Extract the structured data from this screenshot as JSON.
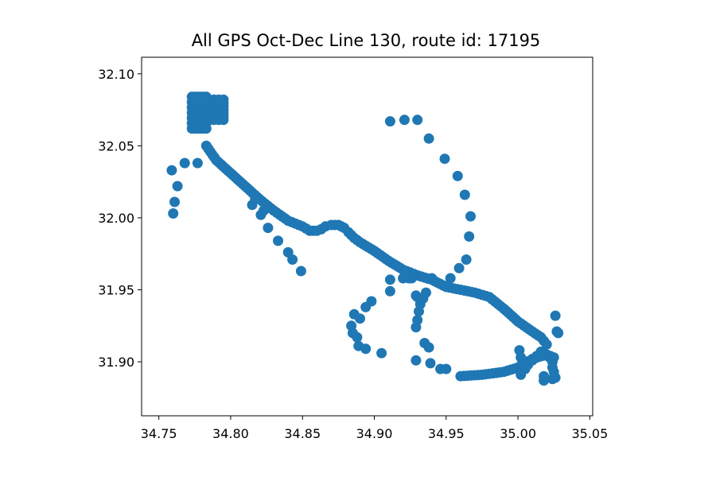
{
  "chart_data": {
    "type": "scatter",
    "title": "All GPS Oct-Dec Line 130, route id: 17195",
    "xlabel": "",
    "ylabel": "",
    "xlim": [
      34.738,
      35.052
    ],
    "ylim": [
      31.8625,
      32.1115
    ],
    "xticks": [
      "34.75",
      "34.80",
      "34.85",
      "34.90",
      "34.95",
      "35.00",
      "35.05"
    ],
    "yticks": [
      "31.90",
      "31.95",
      "32.00",
      "32.05",
      "32.10"
    ],
    "grid": false,
    "legend": "none",
    "color": "#1f77b4",
    "clusters": [
      {
        "x": [
          34.773,
          34.783
        ],
        "y": [
          32.062,
          32.084
        ]
      },
      {
        "x": [
          34.775,
          34.795
        ],
        "y": [
          32.068,
          32.082
        ]
      }
    ],
    "series": [
      {
        "x": [
          34.783,
          34.79,
          34.8,
          34.81,
          34.82,
          34.83,
          34.84,
          34.845,
          34.85,
          34.855,
          34.86,
          34.863,
          34.866,
          34.87,
          34.875,
          34.879,
          34.882,
          34.886,
          34.89,
          34.9,
          34.91,
          34.92,
          34.93,
          34.94,
          34.95,
          34.96,
          34.97,
          34.98,
          34.99,
          35.0,
          35.01,
          35.016,
          35.02
        ],
        "y": [
          32.05,
          32.04,
          32.031,
          32.022,
          32.013,
          32.005,
          31.998,
          31.996,
          31.994,
          31.991,
          31.991,
          31.992,
          31.994,
          31.995,
          31.995,
          31.993,
          31.99,
          31.986,
          31.983,
          31.977,
          31.97,
          31.964,
          31.96,
          31.957,
          31.952,
          31.95,
          31.948,
          31.945,
          31.937,
          31.928,
          31.921,
          31.917,
          31.912
        ]
      },
      {
        "x": [
          34.96,
          34.975,
          34.99,
          35.0,
          35.005,
          35.01,
          35.02,
          35.025
        ],
        "y": [
          31.89,
          31.891,
          31.893,
          31.896,
          31.899,
          31.902,
          31.905,
          31.903
        ]
      },
      {
        "x": [
          34.911,
          34.921,
          34.93,
          34.938,
          34.949,
          34.958,
          34.963,
          34.967,
          34.966,
          34.964,
          34.959,
          34.953,
          34.94,
          34.926,
          34.924,
          34.911,
          34.898,
          34.894,
          34.89,
          34.886,
          34.884,
          34.885,
          34.888,
          34.889,
          34.894,
          34.905,
          34.911,
          34.92,
          34.93,
          34.935,
          34.938,
          34.939,
          34.946,
          34.95,
          34.929,
          34.929,
          34.93,
          34.931,
          34.932,
          34.934,
          34.936,
          34.929
        ],
        "y": [
          32.067,
          32.068,
          32.068,
          32.055,
          32.041,
          32.029,
          32.016,
          32.001,
          31.987,
          31.971,
          31.965,
          31.958,
          31.958,
          31.958,
          31.958,
          31.949,
          31.942,
          31.938,
          31.93,
          31.933,
          31.925,
          31.92,
          31.917,
          31.911,
          31.909,
          31.906,
          31.957,
          31.958,
          31.945,
          31.913,
          31.91,
          31.899,
          31.895,
          31.895,
          31.901,
          31.924,
          31.929,
          31.935,
          31.94,
          31.944,
          31.948,
          31.946
        ]
      },
      {
        "x": [
          34.759,
          34.76,
          34.761,
          34.763,
          34.768,
          34.777,
          34.815,
          34.817,
          34.821,
          34.823,
          34.826,
          34.833,
          34.84,
          34.843,
          34.849
        ],
        "y": [
          32.033,
          32.003,
          32.011,
          32.022,
          32.038,
          32.038,
          32.009,
          32.013,
          32.002,
          32.005,
          31.993,
          31.984,
          31.976,
          31.971,
          31.963
        ]
      },
      {
        "x": [
          35.001,
          35.002,
          35.003,
          35.005,
          35.007,
          35.01,
          35.013,
          35.016,
          35.019,
          35.022,
          35.024,
          35.024,
          35.025,
          35.026,
          35.026,
          35.027,
          35.028,
          35.018,
          35.018,
          35.024,
          35.002
        ],
        "y": [
          31.908,
          31.903,
          31.899,
          31.895,
          31.898,
          31.901,
          31.904,
          31.907,
          31.905,
          31.903,
          31.9,
          31.896,
          31.893,
          31.889,
          31.932,
          31.921,
          31.92,
          31.887,
          31.89,
          31.888,
          31.891
        ]
      }
    ]
  }
}
